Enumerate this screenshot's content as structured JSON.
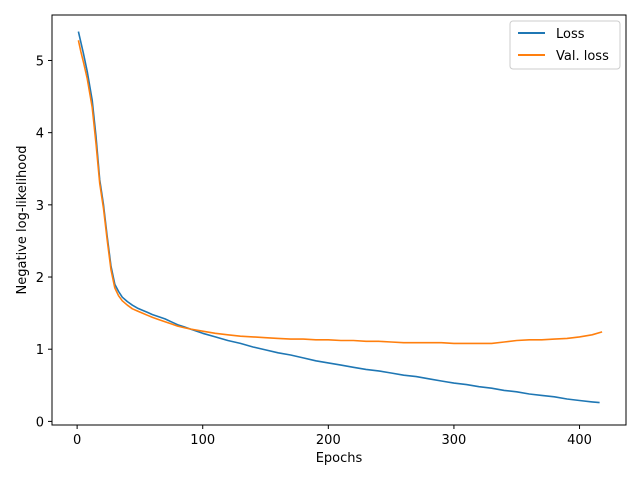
{
  "chart_data": {
    "type": "line",
    "title": "",
    "xlabel": "Epochs",
    "ylabel": "Negative log-likelihood",
    "xlim": [
      -20,
      437
    ],
    "ylim": [
      -0.05,
      5.63
    ],
    "xticks": [
      0,
      100,
      200,
      300,
      400
    ],
    "yticks": [
      0,
      1,
      2,
      3,
      4,
      5
    ],
    "grid": false,
    "legend_position": "top-right",
    "series": [
      {
        "name": "Loss",
        "color": "#1f77b4",
        "x": [
          1,
          3,
          5,
          8,
          12,
          15,
          18,
          21,
          24,
          27,
          30,
          33,
          36,
          40,
          44,
          48,
          52,
          56,
          60,
          65,
          70,
          75,
          80,
          85,
          90,
          100,
          110,
          120,
          130,
          140,
          150,
          160,
          170,
          180,
          190,
          200,
          210,
          220,
          230,
          240,
          250,
          260,
          270,
          280,
          290,
          300,
          310,
          320,
          330,
          340,
          350,
          360,
          370,
          380,
          390,
          400,
          410,
          416
        ],
        "y": [
          5.4,
          5.25,
          5.1,
          4.85,
          4.45,
          3.95,
          3.35,
          3.0,
          2.55,
          2.15,
          1.9,
          1.8,
          1.72,
          1.66,
          1.61,
          1.57,
          1.54,
          1.51,
          1.48,
          1.45,
          1.42,
          1.38,
          1.34,
          1.31,
          1.28,
          1.22,
          1.17,
          1.12,
          1.08,
          1.03,
          0.99,
          0.95,
          0.92,
          0.88,
          0.84,
          0.81,
          0.78,
          0.75,
          0.72,
          0.7,
          0.67,
          0.64,
          0.62,
          0.59,
          0.56,
          0.53,
          0.51,
          0.48,
          0.46,
          0.43,
          0.41,
          0.38,
          0.36,
          0.34,
          0.31,
          0.29,
          0.27,
          0.26
        ]
      },
      {
        "name": "Val. loss",
        "color": "#ff7f0e",
        "x": [
          1,
          3,
          5,
          8,
          12,
          15,
          18,
          21,
          24,
          27,
          30,
          33,
          36,
          40,
          44,
          48,
          52,
          56,
          60,
          65,
          70,
          75,
          80,
          85,
          90,
          100,
          110,
          120,
          130,
          140,
          150,
          160,
          170,
          180,
          190,
          200,
          210,
          220,
          230,
          240,
          250,
          260,
          270,
          280,
          290,
          300,
          310,
          320,
          330,
          340,
          350,
          360,
          370,
          380,
          390,
          400,
          410,
          418
        ],
        "y": [
          5.28,
          5.12,
          4.98,
          4.75,
          4.35,
          3.85,
          3.3,
          2.95,
          2.5,
          2.1,
          1.85,
          1.74,
          1.67,
          1.61,
          1.56,
          1.53,
          1.5,
          1.47,
          1.44,
          1.41,
          1.38,
          1.35,
          1.32,
          1.3,
          1.28,
          1.25,
          1.22,
          1.2,
          1.18,
          1.17,
          1.16,
          1.15,
          1.14,
          1.14,
          1.13,
          1.13,
          1.12,
          1.12,
          1.11,
          1.11,
          1.1,
          1.09,
          1.09,
          1.09,
          1.09,
          1.08,
          1.08,
          1.08,
          1.08,
          1.1,
          1.12,
          1.13,
          1.13,
          1.14,
          1.15,
          1.17,
          1.2,
          1.24
        ]
      }
    ]
  }
}
